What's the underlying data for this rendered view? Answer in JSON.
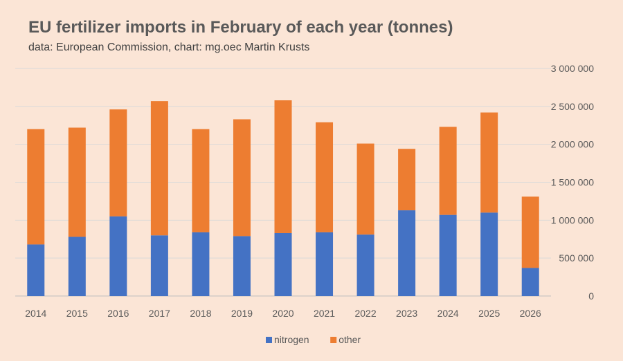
{
  "chart_data": {
    "type": "bar",
    "stacked": true,
    "title": "EU fertilizer imports in February of each year (tonnes)",
    "subtitle": "data: European Commission, chart: mg.oec Martin Krusts",
    "xlabel": "",
    "ylabel": "",
    "ylim": [
      0,
      3000000
    ],
    "yticks": [
      0,
      500000,
      1000000,
      1500000,
      2000000,
      2500000,
      3000000
    ],
    "ytick_labels": [
      "0",
      "500 000",
      "1 000 000",
      "1 500 000",
      "2 000 000",
      "2 500 000",
      "3 000 000"
    ],
    "y_axis_side": "right",
    "grid": true,
    "legend_position": "bottom",
    "categories": [
      "2014",
      "2015",
      "2016",
      "2017",
      "2018",
      "2019",
      "2020",
      "2021",
      "2022",
      "2023",
      "2024",
      "2025",
      "2026"
    ],
    "series": [
      {
        "name": "nitrogen",
        "color": "#4472c4",
        "values": [
          680000,
          780000,
          1050000,
          800000,
          840000,
          790000,
          830000,
          840000,
          810000,
          1130000,
          1070000,
          1100000,
          370000
        ]
      },
      {
        "name": "other",
        "color": "#ed7d31",
        "values": [
          1520000,
          1440000,
          1410000,
          1770000,
          1360000,
          1540000,
          1750000,
          1450000,
          1200000,
          810000,
          1160000,
          1320000,
          940000
        ]
      }
    ]
  }
}
